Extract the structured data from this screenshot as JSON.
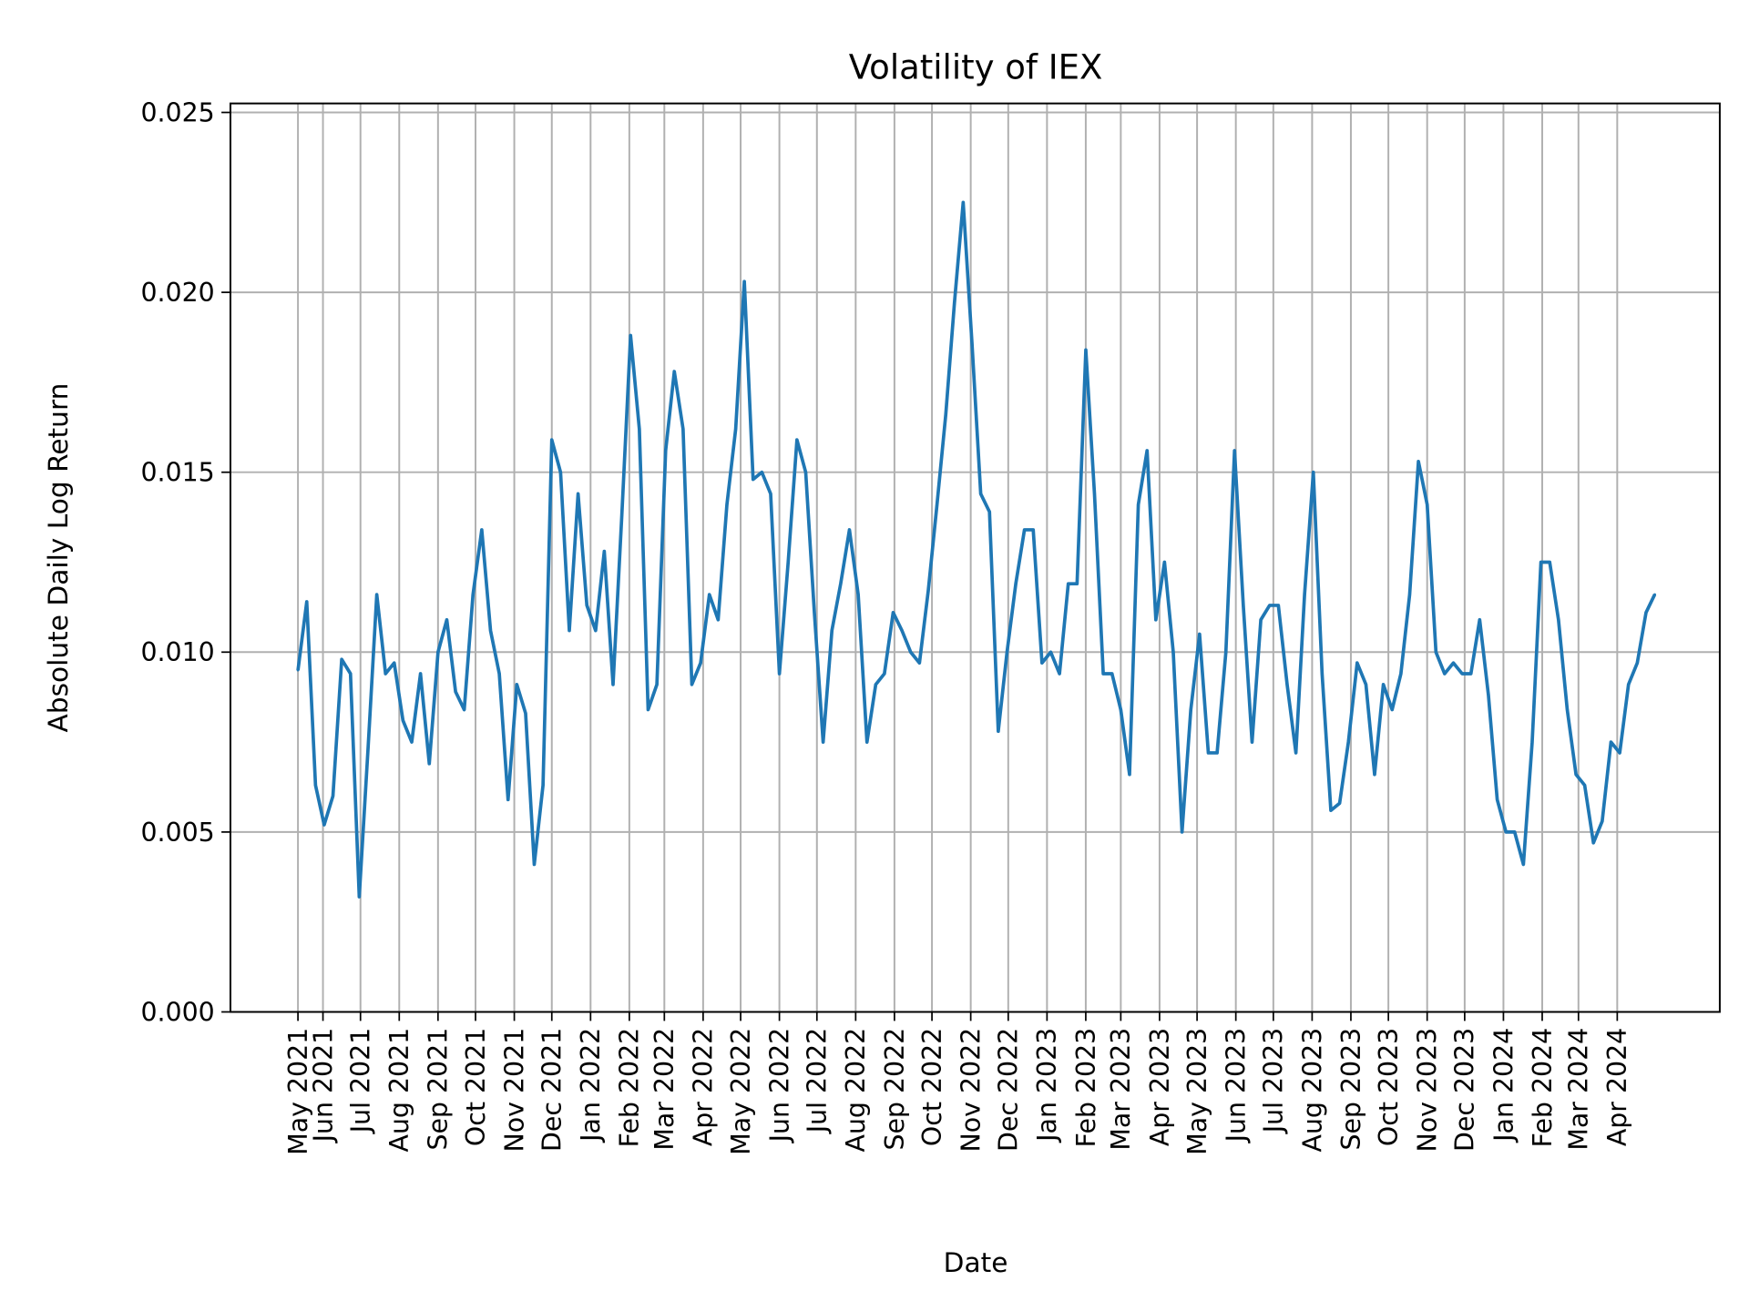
{
  "chart_data": {
    "type": "line",
    "title": "Volatility of IEX",
    "xlabel": "Date",
    "ylabel": "Absolute Daily Log Return",
    "xlim": [
      "2021-03-19",
      "2024-06-22"
    ],
    "ylim": [
      0,
      0.02525
    ],
    "grid": true,
    "line_color": "#1f77b4",
    "grid_color": "#b0b0b0",
    "yticks": [
      {
        "value": 0,
        "label": "0.000"
      },
      {
        "value": 0.005,
        "label": "0.005"
      },
      {
        "value": 0.01,
        "label": "0.010"
      },
      {
        "value": 0.015,
        "label": "0.015"
      },
      {
        "value": 0.02,
        "label": "0.020"
      },
      {
        "value": 0.025,
        "label": "0.025"
      }
    ],
    "xticks": [
      {
        "date": "2021-05-12",
        "label": "May 2021"
      },
      {
        "date": "2021-06-01",
        "label": "Jun 2021"
      },
      {
        "date": "2021-07-01",
        "label": "Jul 2021"
      },
      {
        "date": "2021-08-01",
        "label": "Aug 2021"
      },
      {
        "date": "2021-09-01",
        "label": "Sep 2021"
      },
      {
        "date": "2021-10-01",
        "label": "Oct 2021"
      },
      {
        "date": "2021-11-01",
        "label": "Nov 2021"
      },
      {
        "date": "2021-12-01",
        "label": "Dec 2021"
      },
      {
        "date": "2022-01-01",
        "label": "Jan 2022"
      },
      {
        "date": "2022-02-01",
        "label": "Feb 2022"
      },
      {
        "date": "2022-03-01",
        "label": "Mar 2022"
      },
      {
        "date": "2022-04-01",
        "label": "Apr 2022"
      },
      {
        "date": "2022-05-01",
        "label": "May 2022"
      },
      {
        "date": "2022-06-01",
        "label": "Jun 2022"
      },
      {
        "date": "2022-07-01",
        "label": "Jul 2022"
      },
      {
        "date": "2022-08-01",
        "label": "Aug 2022"
      },
      {
        "date": "2022-09-01",
        "label": "Sep 2022"
      },
      {
        "date": "2022-10-01",
        "label": "Oct 2022"
      },
      {
        "date": "2022-11-01",
        "label": "Nov 2022"
      },
      {
        "date": "2022-12-01",
        "label": "Dec 2022"
      },
      {
        "date": "2023-01-01",
        "label": "Jan 2023"
      },
      {
        "date": "2023-02-01",
        "label": "Feb 2023"
      },
      {
        "date": "2023-03-01",
        "label": "Mar 2023"
      },
      {
        "date": "2023-04-01",
        "label": "Apr 2023"
      },
      {
        "date": "2023-05-01",
        "label": "May 2023"
      },
      {
        "date": "2023-06-01",
        "label": "Jun 2023"
      },
      {
        "date": "2023-07-01",
        "label": "Jul 2023"
      },
      {
        "date": "2023-08-01",
        "label": "Aug 2023"
      },
      {
        "date": "2023-09-01",
        "label": "Sep 2023"
      },
      {
        "date": "2023-10-01",
        "label": "Oct 2023"
      },
      {
        "date": "2023-11-01",
        "label": "Nov 2023"
      },
      {
        "date": "2023-12-01",
        "label": "Dec 2023"
      },
      {
        "date": "2024-01-01",
        "label": "Jan 2024"
      },
      {
        "date": "2024-02-01",
        "label": "Feb 2024"
      },
      {
        "date": "2024-03-01",
        "label": "Mar 2024"
      },
      {
        "date": "2024-04-01",
        "label": "Apr 2024"
      }
    ],
    "series": [
      {
        "dates": [
          "2021-05-12",
          "2021-05-19",
          "2021-05-26",
          "2021-06-02",
          "2021-06-09",
          "2021-06-16",
          "2021-06-23",
          "2021-06-30",
          "2021-07-07",
          "2021-07-14",
          "2021-07-21",
          "2021-07-28",
          "2021-08-04",
          "2021-08-11",
          "2021-08-18",
          "2021-08-25",
          "2021-09-01",
          "2021-09-08",
          "2021-09-15",
          "2021-09-22",
          "2021-09-29",
          "2021-10-06",
          "2021-10-13",
          "2021-10-20",
          "2021-10-27",
          "2021-11-03",
          "2021-11-10",
          "2021-11-17",
          "2021-11-24",
          "2021-12-01",
          "2021-12-08",
          "2021-12-15",
          "2021-12-22",
          "2021-12-29",
          "2022-01-05",
          "2022-01-12",
          "2022-01-19",
          "2022-01-26",
          "2022-02-02",
          "2022-02-09",
          "2022-02-16",
          "2022-02-23",
          "2022-03-02",
          "2022-03-09",
          "2022-03-16",
          "2022-03-23",
          "2022-03-30",
          "2022-04-06",
          "2022-04-13",
          "2022-04-20",
          "2022-04-27",
          "2022-05-04",
          "2022-05-11",
          "2022-05-18",
          "2022-05-25",
          "2022-06-01",
          "2022-06-08",
          "2022-06-15",
          "2022-06-22",
          "2022-06-29",
          "2022-07-06",
          "2022-07-13",
          "2022-07-20",
          "2022-07-27",
          "2022-08-03",
          "2022-08-10",
          "2022-08-17",
          "2022-08-24",
          "2022-08-31",
          "2022-09-07",
          "2022-09-14",
          "2022-09-21",
          "2022-09-28",
          "2022-10-05",
          "2022-10-12",
          "2022-10-19",
          "2022-10-26",
          "2022-11-02",
          "2022-11-09",
          "2022-11-16",
          "2022-11-23",
          "2022-11-30",
          "2022-12-07",
          "2022-12-14",
          "2022-12-21",
          "2022-12-28",
          "2023-01-04",
          "2023-01-11",
          "2023-01-18",
          "2023-01-25",
          "2023-02-01",
          "2023-02-08",
          "2023-02-15",
          "2023-02-22",
          "2023-03-01",
          "2023-03-08",
          "2023-03-15",
          "2023-03-22",
          "2023-03-29",
          "2023-04-05",
          "2023-04-12",
          "2023-04-19",
          "2023-04-26",
          "2023-05-03",
          "2023-05-10",
          "2023-05-17",
          "2023-05-24",
          "2023-05-31",
          "2023-06-07",
          "2023-06-14",
          "2023-06-21",
          "2023-06-28",
          "2023-07-05",
          "2023-07-12",
          "2023-07-19",
          "2023-07-26",
          "2023-08-02",
          "2023-08-09",
          "2023-08-16",
          "2023-08-23",
          "2023-08-30",
          "2023-09-06",
          "2023-09-13",
          "2023-09-20",
          "2023-09-27",
          "2023-10-04",
          "2023-10-11",
          "2023-10-18",
          "2023-10-25",
          "2023-11-01",
          "2023-11-08",
          "2023-11-15",
          "2023-11-22",
          "2023-11-29",
          "2023-12-06",
          "2023-12-13",
          "2023-12-20",
          "2023-12-27",
          "2024-01-03",
          "2024-01-10",
          "2024-01-17",
          "2024-01-24",
          "2024-01-31",
          "2024-02-07",
          "2024-02-14",
          "2024-02-21",
          "2024-02-28",
          "2024-03-06",
          "2024-03-13",
          "2024-03-20",
          "2024-03-27",
          "2024-04-03",
          "2024-04-10",
          "2024-04-17",
          "2024-04-24",
          "2024-05-01"
        ],
        "values": [
          0.0095,
          0.0114,
          0.0063,
          0.0052,
          0.006,
          0.0098,
          0.0094,
          0.0032,
          0.0073,
          0.0116,
          0.0094,
          0.0097,
          0.0081,
          0.0075,
          0.0094,
          0.0069,
          0.01,
          0.0109,
          0.0089,
          0.0084,
          0.0116,
          0.0134,
          0.0106,
          0.0094,
          0.0059,
          0.0091,
          0.0083,
          0.0041,
          0.0063,
          0.0159,
          0.015,
          0.0106,
          0.0144,
          0.0113,
          0.0106,
          0.0128,
          0.0091,
          0.0138,
          0.0188,
          0.0162,
          0.0084,
          0.0091,
          0.0156,
          0.0178,
          0.0162,
          0.0091,
          0.0097,
          0.0116,
          0.0109,
          0.0141,
          0.0162,
          0.0203,
          0.0148,
          0.015,
          0.0144,
          0.0094,
          0.0125,
          0.0159,
          0.015,
          0.0111,
          0.0075,
          0.0106,
          0.0119,
          0.0134,
          0.0116,
          0.0075,
          0.0091,
          0.0094,
          0.0111,
          0.0106,
          0.01,
          0.0097,
          0.0117,
          0.0141,
          0.0166,
          0.0197,
          0.0225,
          0.0186,
          0.0144,
          0.0139,
          0.0078,
          0.01,
          0.0119,
          0.0134,
          0.0134,
          0.0097,
          0.01,
          0.0094,
          0.0119,
          0.0119,
          0.0184,
          0.0144,
          0.0094,
          0.0094,
          0.0084,
          0.0066,
          0.0141,
          0.0156,
          0.0109,
          0.0125,
          0.01,
          0.005,
          0.0084,
          0.0105,
          0.0072,
          0.0072,
          0.01,
          0.0156,
          0.0113,
          0.0075,
          0.0109,
          0.0113,
          0.0113,
          0.0091,
          0.0072,
          0.0116,
          0.015,
          0.0094,
          0.0056,
          0.0058,
          0.0075,
          0.0097,
          0.0091,
          0.0066,
          0.0091,
          0.0084,
          0.0094,
          0.0116,
          0.0153,
          0.0141,
          0.01,
          0.0094,
          0.0097,
          0.0094,
          0.0094,
          0.0109,
          0.0088,
          0.0059,
          0.005,
          0.005,
          0.0041,
          0.0075,
          0.0125,
          0.0125,
          0.0109,
          0.0084,
          0.0066,
          0.0063,
          0.0047,
          0.0053,
          0.0075,
          0.0072,
          0.0091,
          0.0097,
          0.0111,
          0.0116
        ]
      }
    ]
  }
}
